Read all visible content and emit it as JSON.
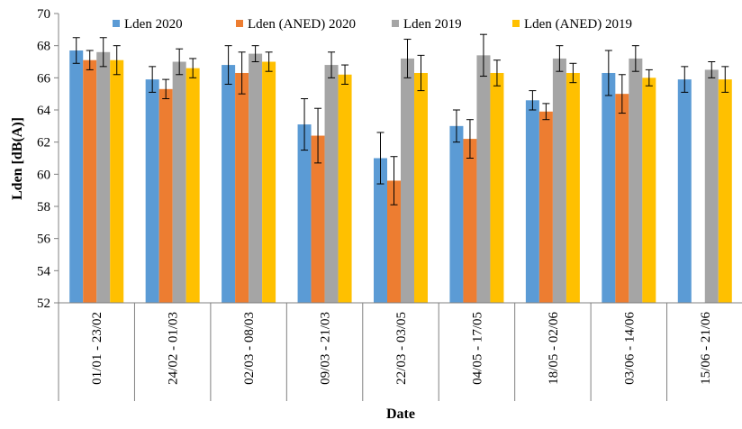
{
  "chart_data": {
    "type": "bar",
    "title": "",
    "xlabel": "Date",
    "ylabel": "Lden [dB(A)]",
    "ylim": [
      52,
      70
    ],
    "yticks": [
      52,
      54,
      56,
      58,
      60,
      62,
      64,
      66,
      68,
      70
    ],
    "grid": false,
    "legend_position": "top",
    "error_bars": true,
    "categories": [
      "01/01 - 23/02",
      "24/02 - 01/03",
      "02/03 - 08/03",
      "09/03 - 21/03",
      "22/03 - 03/05",
      "04/05 - 17/05",
      "18/05 - 02/06",
      "03/06 - 14/06",
      "15/06 - 21/06"
    ],
    "series": [
      {
        "name": "Lden 2020",
        "color": "#5B9BD5",
        "values": [
          67.7,
          65.9,
          66.8,
          63.1,
          61.0,
          63.0,
          64.6,
          66.3,
          65.9
        ],
        "errors": [
          0.8,
          0.8,
          1.2,
          1.6,
          1.6,
          1.0,
          0.6,
          1.4,
          0.8
        ]
      },
      {
        "name": "Lden (ANED) 2020",
        "color": "#ED7D31",
        "values": [
          67.1,
          65.3,
          66.3,
          62.4,
          59.6,
          62.2,
          63.9,
          65.0,
          null
        ],
        "errors": [
          0.6,
          0.6,
          1.3,
          1.7,
          1.5,
          1.2,
          0.5,
          1.2,
          null
        ]
      },
      {
        "name": "Lden 2019",
        "color": "#A5A5A5",
        "values": [
          67.6,
          67.0,
          67.5,
          66.8,
          67.2,
          67.4,
          67.2,
          67.2,
          66.5
        ],
        "errors": [
          0.9,
          0.8,
          0.5,
          0.8,
          1.2,
          1.3,
          0.8,
          0.8,
          0.5
        ]
      },
      {
        "name": "Lden (ANED) 2019",
        "color": "#FFC000",
        "values": [
          67.1,
          66.6,
          67.0,
          66.2,
          66.3,
          66.3,
          66.3,
          66.0,
          65.9
        ],
        "errors": [
          0.9,
          0.6,
          0.6,
          0.6,
          1.1,
          0.8,
          0.6,
          0.5,
          0.8
        ]
      }
    ]
  }
}
